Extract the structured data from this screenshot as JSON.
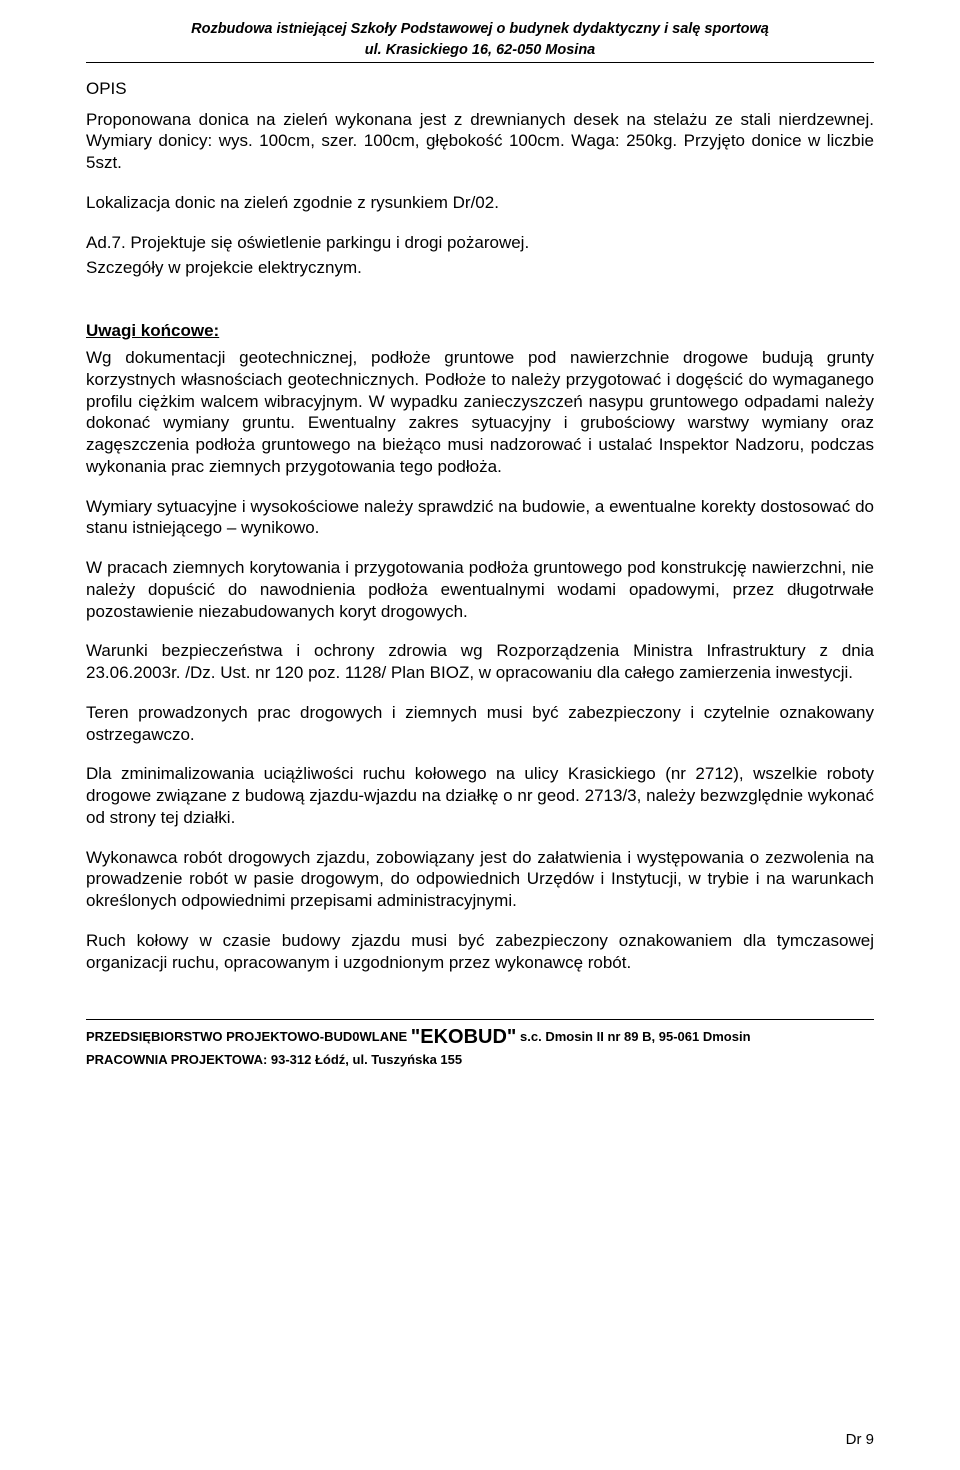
{
  "header": {
    "line1": "Rozbudowa istniejącej Szkoły Podstawowej o budynek dydaktyczny i salę sportową",
    "line2": "ul. Krasickiego 16, 62-050 Mosina"
  },
  "body": {
    "opis_label": "OPIS",
    "p1": "Proponowana donica na zieleń wykonana jest z drewnianych desek na stelażu ze stali nierdzewnej. Wymiary donicy: wys. 100cm, szer. 100cm, głębokość 100cm. Waga: 250kg. Przyjęto donice w liczbie 5szt.",
    "p2": "Lokalizacja donic na zieleń zgodnie z rysunkiem Dr/02.",
    "p3a": "Ad.7. Projektuje się oświetlenie parkingu i drogi pożarowej.",
    "p3b": "Szczegóły w projekcie elektrycznym.",
    "uwagi_label": "Uwagi końcowe:",
    "p4": "Wg dokumentacji geotechnicznej, podłoże gruntowe pod nawierzchnie drogowe budują grunty korzystnych własnościach geotechnicznych. Podłoże to należy przygotować i dogęścić do wymaganego profilu ciężkim walcem wibracyjnym. W wypadku zanieczyszczeń nasypu gruntowego odpadami należy dokonać wymiany gruntu. Ewentualny zakres sytuacyjny i grubościowy warstwy wymiany oraz zagęszczenia podłoża gruntowego na bieżąco musi nadzorować i ustalać Inspektor Nadzoru, podczas wykonania prac ziemnych przygotowania tego podłoża.",
    "p5": "Wymiary sytuacyjne i wysokościowe należy sprawdzić na budowie, a ewentualne korekty dostosować do stanu istniejącego – wynikowo.",
    "p6": "W pracach ziemnych korytowania i przygotowania podłoża gruntowego pod konstrukcję nawierzchni, nie należy dopuścić do nawodnienia podłoża ewentualnymi wodami opadowymi, przez długotrwałe pozostawienie niezabudowanych koryt drogowych.",
    "p7": "Warunki bezpieczeństwa i ochrony zdrowia wg Rozporządzenia Ministra Infrastruktury z dnia 23.06.2003r. /Dz. Ust. nr 120 poz. 1128/ Plan BIOZ, w opracowaniu dla całego zamierzenia inwestycji.",
    "p8": "Teren prowadzonych prac drogowych i ziemnych musi być zabezpieczony i czytelnie oznakowany ostrzegawczo.",
    "p9": "Dla zminimalizowania uciążliwości ruchu kołowego na ulicy Krasickiego (nr 2712), wszelkie roboty drogowe związane z budową zjazdu-wjazdu na działkę o nr geod. 2713/3, należy bezwzględnie wykonać od strony tej działki.",
    "p10": "Wykonawca robót drogowych zjazdu, zobowiązany jest do załatwienia i występowania o zezwolenia na prowadzenie robót w pasie drogowym, do odpowiednich Urzędów i Instytucji, w trybie i na warunkach określonych odpowiednimi przepisami administracyjnymi.",
    "p11": "Ruch kołowy w czasie budowy zjazdu musi być zabezpieczony oznakowaniem dla tymczasowej organizacji ruchu, opracowanym i uzgodnionym przez wykonawcę robót."
  },
  "footer": {
    "line1_prefix": "PRZEDSIĘBIORSTWO PROJEKTOWO-BUD0WLANE ",
    "line1_brand": "\"EKOBUD\"",
    "line1_suffix": " s.c. Dmosin II nr 89 B, 95-061 Dmosin",
    "line2": "PRACOWNIA PROJEKTOWA: 93-312 Łódź, ul. Tuszyńska 155",
    "page_num": "Dr 9"
  }
}
